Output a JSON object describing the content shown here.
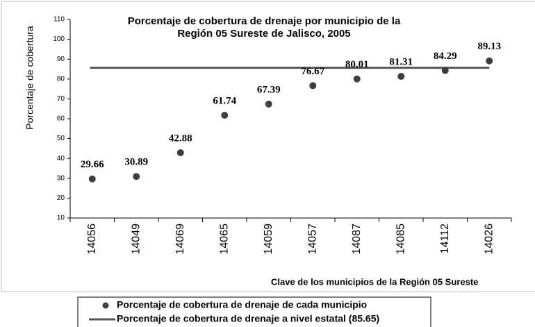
{
  "chart_data": {
    "type": "dot",
    "title": [
      "Porcentaje de cobertura de drenaje por municipio de la",
      "Región 05 Sureste de Jalisco, 2005"
    ],
    "y_label": "Porcentaje de cobertura",
    "x_label": "Clave de los municipios de la Región 05 Sureste",
    "categories": [
      "14056",
      "14049",
      "14069",
      "14065",
      "14059",
      "14057",
      "14087",
      "14085",
      "14112",
      "14026"
    ],
    "series": [
      {
        "name": "Porcentaje de cobertura de drenaje de cada municipio",
        "color": "#3f3f3f",
        "values": [
          29.66,
          30.89,
          42.88,
          61.74,
          67.39,
          76.67,
          80.01,
          81.31,
          84.29,
          89.13
        ]
      }
    ],
    "reference_line": {
      "name": "Porcentaje de cobertura de drenaje a nivel estatal (85.65)",
      "value": 85.65,
      "color": "#555555"
    },
    "ylim": [
      10,
      110
    ],
    "yticks": [
      10,
      20,
      30,
      40,
      50,
      60,
      70,
      80,
      90,
      100,
      110
    ],
    "legend": "bottom"
  }
}
